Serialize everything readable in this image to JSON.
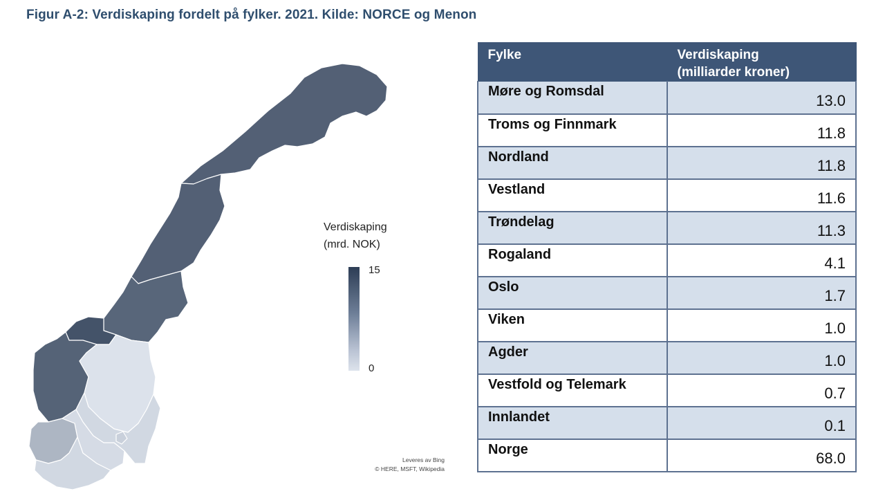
{
  "figure": {
    "title": "Figur A-2: Verdiskaping fordelt på fylker. 2021. Kilde: NORCE og Menon"
  },
  "map": {
    "legend": {
      "title_line1": "Verdiskaping",
      "title_line2": "(mrd. NOK)",
      "max_label": "15",
      "min_label": "0",
      "range": [
        0,
        15
      ],
      "color_low": "#dde3ec",
      "color_high": "#2d3d55"
    },
    "credit_line1": "Leveres av Bing",
    "credit_line2": "© HERE, MSFT, Wikipedia",
    "regions": [
      {
        "name": "Troms og Finnmark",
        "value": 11.8
      },
      {
        "name": "Nordland",
        "value": 11.8
      },
      {
        "name": "Trøndelag",
        "value": 11.3
      },
      {
        "name": "Møre og Romsdal",
        "value": 13.0
      },
      {
        "name": "Vestland",
        "value": 11.6
      },
      {
        "name": "Rogaland",
        "value": 4.1
      },
      {
        "name": "Agder",
        "value": 1.0
      },
      {
        "name": "Vestfold og Telemark",
        "value": 0.7
      },
      {
        "name": "Viken",
        "value": 1.0
      },
      {
        "name": "Oslo",
        "value": 1.7
      },
      {
        "name": "Innlandet",
        "value": 0.1
      }
    ]
  },
  "table": {
    "header": {
      "col1": "Fylke",
      "col2_line1": "Verdiskaping",
      "col2_line2": "(milliarder kroner)"
    },
    "rows": [
      {
        "name": "Møre og Romsdal",
        "value": "13.0"
      },
      {
        "name": "Troms og Finnmark",
        "value": "11.8"
      },
      {
        "name": "Nordland",
        "value": "11.8"
      },
      {
        "name": "Vestland",
        "value": "11.6"
      },
      {
        "name": "Trøndelag",
        "value": "11.3"
      },
      {
        "name": "Rogaland",
        "value": "4.1"
      },
      {
        "name": "Oslo",
        "value": "1.7"
      },
      {
        "name": "Viken",
        "value": "1.0"
      },
      {
        "name": "Agder",
        "value": "1.0"
      },
      {
        "name": "Vestfold og Telemark",
        "value": "0.7"
      },
      {
        "name": "Innlandet",
        "value": "0.1"
      },
      {
        "name": "Norge",
        "value": "68.0"
      }
    ]
  }
}
